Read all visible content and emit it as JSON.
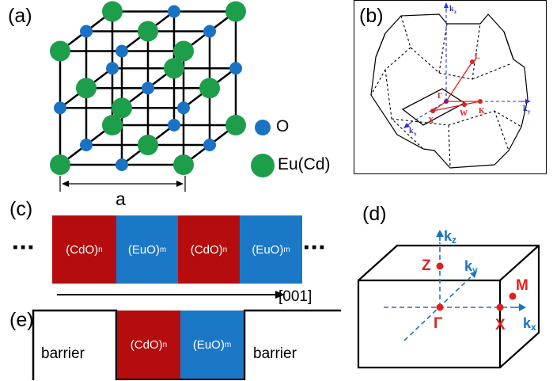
{
  "panel_labels": {
    "a": "(a)",
    "b": "(b)",
    "c": "(c)",
    "d": "(d)",
    "e": "(e)"
  },
  "panel_a": {
    "legend_o": "O",
    "legend_eu": "Eu(Cd)",
    "lattice_label": "a",
    "colors": {
      "O": "#1a72c4",
      "Eu": "#1d9e4b"
    }
  },
  "panel_b": {
    "points": [
      "Γ",
      "X",
      "W",
      "K",
      "L"
    ],
    "axes": [
      "k",
      "k",
      "k"
    ],
    "axis_subs": [
      "z",
      "y",
      "x"
    ]
  },
  "panel_c": {
    "ellipsis": "▪▪▪",
    "layers": [
      {
        "base": "(CdO)",
        "sub": "n"
      },
      {
        "base": "(EuO)",
        "sub": "m"
      },
      {
        "base": "(CdO)",
        "sub": "n"
      },
      {
        "base": "(EuO)",
        "sub": "m"
      }
    ],
    "direction": "[001]"
  },
  "panel_d": {
    "points": {
      "Z": "Z",
      "Gamma": "Γ",
      "X": "X",
      "M": "M"
    },
    "axes": {
      "kz": "k",
      "ky": "k",
      "kx": "k"
    },
    "axis_subs": {
      "kz": "z",
      "ky": "y",
      "kx": "x"
    }
  },
  "panel_e": {
    "left": "barrier",
    "right": "barrier",
    "layers": [
      {
        "base": "(CdO)",
        "sub": "n"
      },
      {
        "base": "(EuO)",
        "sub": "m"
      }
    ]
  },
  "colors": {
    "cdo": "#b50d0d",
    "euo": "#1b78c6",
    "point_red": "#e02020",
    "axis_blue": "#1a72c4"
  }
}
